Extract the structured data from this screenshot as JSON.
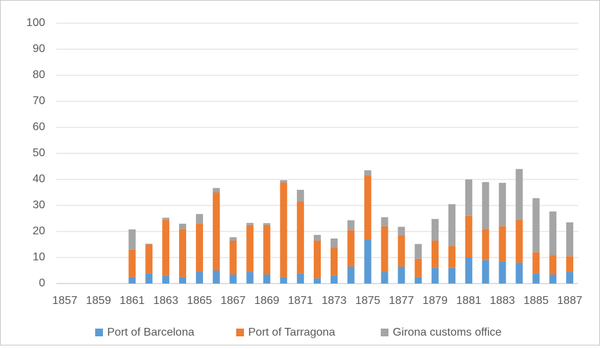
{
  "chart_data": {
    "type": "stacked_bar",
    "categories": [
      "1857",
      null,
      "1859",
      null,
      "1861",
      null,
      "1863",
      null,
      "1865",
      null,
      "1867",
      null,
      "1869",
      null,
      "1871",
      null,
      "1873",
      null,
      "1875",
      null,
      "1877",
      null,
      "1879",
      null,
      "1881",
      null,
      "1883",
      null,
      "1885",
      null,
      "1887"
    ],
    "series": [
      {
        "name": "Port of Barcelona",
        "color": "#5b9bd5",
        "values": [
          null,
          null,
          null,
          null,
          2.5,
          4,
          3,
          2.5,
          4.5,
          5,
          3.5,
          4.5,
          3.5,
          2.5,
          4,
          2,
          3,
          6.5,
          17,
          4.5,
          6.5,
          2.5,
          6,
          6,
          10,
          9,
          8.5,
          8,
          4,
          3.5,
          4.5
        ]
      },
      {
        "name": "Port of Tarragona",
        "color": "#ed7d31",
        "values": [
          null,
          null,
          null,
          null,
          10.5,
          11,
          21.5,
          18.5,
          18.5,
          30,
          13,
          18,
          19,
          36.3,
          27.5,
          14.5,
          11,
          14,
          24.5,
          17.5,
          12,
          7,
          10.5,
          8.5,
          16,
          12,
          13.5,
          16.5,
          8,
          7.5,
          6
        ]
      },
      {
        "name": "Girona customs office",
        "color": "#a5a5a5",
        "values": [
          null,
          null,
          null,
          null,
          7.8,
          0.3,
          0.8,
          2,
          3.7,
          1.7,
          1.3,
          0.8,
          0.7,
          0.9,
          4.5,
          2.2,
          3.3,
          3.8,
          2,
          3.5,
          3.3,
          5.7,
          8.3,
          16,
          14,
          18,
          16.7,
          19.5,
          20.8,
          16.7,
          13
        ]
      }
    ],
    "ylim": [
      0,
      100
    ],
    "yticks": [
      0,
      10,
      20,
      30,
      40,
      50,
      60,
      70,
      80,
      90,
      100
    ],
    "grid": true,
    "legend": "bottom"
  }
}
